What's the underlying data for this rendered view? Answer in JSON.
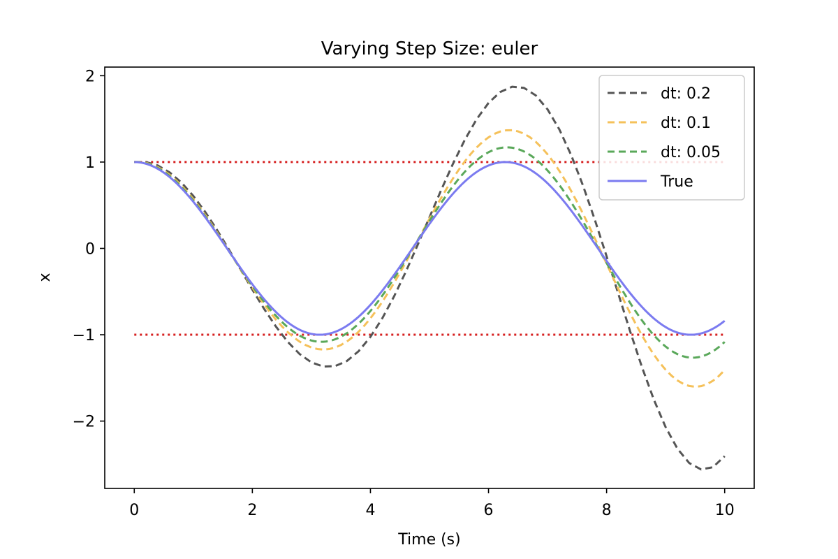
{
  "chart_data": {
    "type": "line",
    "title": "Varying Step Size: euler",
    "xlabel": "Time (s)",
    "ylabel": "x",
    "xlim": [
      -0.5,
      10.5
    ],
    "ylim": [
      -2.78,
      2.1
    ],
    "xticks": [
      0,
      2,
      4,
      6,
      8,
      10
    ],
    "xtick_labels": [
      "0",
      "2",
      "4",
      "6",
      "8",
      "10"
    ],
    "yticks": [
      -2,
      -1,
      0,
      1,
      2
    ],
    "ytick_labels": [
      "−2",
      "−1",
      "0",
      "1",
      "2"
    ],
    "grid": false,
    "legend_position": "top-right",
    "series": [
      {
        "name": "dt: 0.2",
        "color": "#555555",
        "style": "dashed",
        "generator": {
          "method": "euler",
          "dt": 0.2,
          "x0": 1,
          "v0": 0,
          "t_end": 10
        }
      },
      {
        "name": "dt: 0.1",
        "color": "#f5c15a",
        "style": "dashed",
        "generator": {
          "method": "euler",
          "dt": 0.1,
          "x0": 1,
          "v0": 0,
          "t_end": 10
        }
      },
      {
        "name": "dt: 0.05",
        "color": "#5aa85a",
        "style": "dashed",
        "generator": {
          "method": "euler",
          "dt": 0.05,
          "x0": 1,
          "v0": 0,
          "t_end": 10
        }
      },
      {
        "name": "True",
        "color": "#7b7bf0",
        "style": "solid",
        "generator": {
          "method": "cos",
          "dt": 0.02,
          "t_end": 10
        }
      }
    ],
    "reference_lines": [
      {
        "y": 1,
        "color": "#d62020",
        "style": "dotted",
        "x_range": [
          0,
          10
        ]
      },
      {
        "y": -1,
        "color": "#d62020",
        "style": "dotted",
        "x_range": [
          0,
          10
        ]
      }
    ]
  }
}
